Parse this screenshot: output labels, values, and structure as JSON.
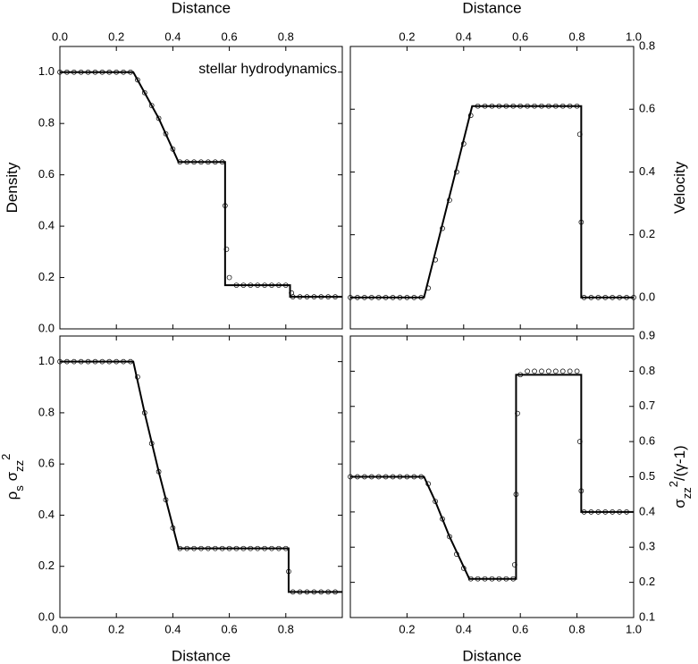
{
  "chart_data": [
    {
      "type": "line-scatter",
      "xlabel": "Distance",
      "xaxis_side": "top",
      "ylabel_parts": [
        {
          "text": "Density"
        }
      ],
      "yaxis_side": "left",
      "annotation": "stellar hydrodynamics",
      "xlim": [
        0,
        1
      ],
      "ylim": [
        0,
        1.1
      ],
      "xticks": [
        {
          "value": 0,
          "label": "0.0"
        },
        0.2,
        0.4,
        0.6,
        0.8
      ],
      "yticks": [
        {
          "value": 0,
          "label": "0.0"
        },
        0.2,
        0.4,
        0.6,
        0.8,
        {
          "value": 1,
          "label": "1.0"
        }
      ],
      "series": [
        {
          "kind": "line",
          "color": "#000000",
          "x": [
            0,
            0.26,
            0.3,
            0.35,
            0.42,
            0.585,
            0.585,
            0.815,
            0.815,
            1
          ],
          "values": [
            1,
            1,
            0.92,
            0.82,
            0.65,
            0.65,
            0.17,
            0.17,
            0.125,
            0.125
          ]
        },
        {
          "kind": "scatter",
          "color": "#000000",
          "x": [
            0,
            0.025,
            0.05,
            0.075,
            0.1,
            0.125,
            0.15,
            0.175,
            0.2,
            0.225,
            0.25,
            0.275,
            0.3,
            0.325,
            0.35,
            0.375,
            0.4,
            0.425,
            0.45,
            0.475,
            0.5,
            0.525,
            0.55,
            0.575,
            0.585,
            0.59,
            0.6,
            0.625,
            0.65,
            0.675,
            0.7,
            0.725,
            0.75,
            0.775,
            0.8,
            0.82,
            0.825,
            0.85,
            0.875,
            0.9,
            0.925,
            0.95,
            0.975
          ],
          "values": [
            1,
            1,
            1,
            1,
            1,
            1,
            1,
            1,
            1,
            1,
            1,
            0.97,
            0.92,
            0.87,
            0.82,
            0.76,
            0.7,
            0.65,
            0.65,
            0.65,
            0.65,
            0.65,
            0.65,
            0.65,
            0.48,
            0.31,
            0.2,
            0.17,
            0.17,
            0.17,
            0.17,
            0.17,
            0.17,
            0.17,
            0.17,
            0.14,
            0.125,
            0.125,
            0.125,
            0.125,
            0.125,
            0.125,
            0.125
          ]
        }
      ]
    },
    {
      "type": "line-scatter",
      "xlabel": "Distance",
      "xaxis_side": "top",
      "ylabel_parts": [
        {
          "text": "Velocity"
        }
      ],
      "yaxis_side": "right",
      "xlim": [
        0,
        1
      ],
      "ylim": [
        -0.1,
        0.8
      ],
      "xticks": [
        0.2,
        0.4,
        0.6,
        0.8,
        {
          "value": 1,
          "label": "1.0"
        }
      ],
      "yticks": [
        {
          "value": 0,
          "label": "0.0"
        },
        0.2,
        0.4,
        0.6,
        0.8
      ],
      "series": [
        {
          "kind": "line",
          "color": "#000000",
          "x": [
            0,
            0.26,
            0.43,
            0.815,
            0.815,
            1
          ],
          "values": [
            0,
            0,
            0.61,
            0.61,
            0,
            0
          ]
        },
        {
          "kind": "scatter",
          "color": "#000000",
          "x": [
            0,
            0.025,
            0.05,
            0.075,
            0.1,
            0.125,
            0.15,
            0.175,
            0.2,
            0.225,
            0.25,
            0.275,
            0.3,
            0.325,
            0.35,
            0.375,
            0.4,
            0.425,
            0.45,
            0.475,
            0.5,
            0.525,
            0.55,
            0.575,
            0.6,
            0.625,
            0.65,
            0.675,
            0.7,
            0.725,
            0.75,
            0.775,
            0.8,
            0.81,
            0.815,
            0.825,
            0.85,
            0.875,
            0.9,
            0.925,
            0.95,
            0.975,
            1
          ],
          "values": [
            0,
            0,
            0,
            0,
            0,
            0,
            0,
            0,
            0,
            0,
            0,
            0.03,
            0.12,
            0.22,
            0.31,
            0.4,
            0.49,
            0.58,
            0.61,
            0.61,
            0.61,
            0.61,
            0.61,
            0.61,
            0.61,
            0.61,
            0.61,
            0.61,
            0.61,
            0.61,
            0.61,
            0.61,
            0.61,
            0.52,
            0.24,
            0,
            0,
            0,
            0,
            0,
            0,
            0,
            0
          ]
        }
      ]
    },
    {
      "type": "line-scatter",
      "xlabel": "Distance",
      "xaxis_side": "bottom",
      "ylabel_parts": [
        {
          "text": "ρ"
        },
        {
          "text": "s",
          "script": "sub"
        },
        {
          "text": " σ"
        },
        {
          "text": "zz",
          "script": "sub"
        },
        {
          "text": "2",
          "script": "super"
        }
      ],
      "yaxis_side": "left",
      "xlim": [
        0,
        1
      ],
      "ylim": [
        0,
        1.1
      ],
      "xticks": [
        {
          "value": 0,
          "label": "0.0"
        },
        0.2,
        0.4,
        0.6,
        0.8
      ],
      "yticks": [
        {
          "value": 0,
          "label": "0.0"
        },
        0.2,
        0.4,
        0.6,
        0.8,
        {
          "value": 1,
          "label": "1.0"
        }
      ],
      "series": [
        {
          "kind": "line",
          "color": "#000000",
          "x": [
            0,
            0.26,
            0.3,
            0.35,
            0.42,
            0.81,
            0.81,
            1
          ],
          "values": [
            1,
            1,
            0.8,
            0.57,
            0.27,
            0.27,
            0.1,
            0.1
          ]
        },
        {
          "kind": "scatter",
          "color": "#000000",
          "x": [
            0,
            0.025,
            0.05,
            0.075,
            0.1,
            0.125,
            0.15,
            0.175,
            0.2,
            0.225,
            0.25,
            0.275,
            0.3,
            0.325,
            0.35,
            0.375,
            0.4,
            0.425,
            0.45,
            0.475,
            0.5,
            0.525,
            0.55,
            0.575,
            0.6,
            0.625,
            0.65,
            0.675,
            0.7,
            0.725,
            0.75,
            0.775,
            0.8,
            0.81,
            0.825,
            0.85,
            0.875,
            0.9,
            0.925,
            0.95,
            0.975
          ],
          "values": [
            1,
            1,
            1,
            1,
            1,
            1,
            1,
            1,
            1,
            1,
            1,
            0.94,
            0.8,
            0.68,
            0.57,
            0.46,
            0.35,
            0.27,
            0.27,
            0.27,
            0.27,
            0.27,
            0.27,
            0.27,
            0.27,
            0.27,
            0.27,
            0.27,
            0.27,
            0.27,
            0.27,
            0.27,
            0.27,
            0.18,
            0.1,
            0.1,
            0.1,
            0.1,
            0.1,
            0.1,
            0.1
          ]
        }
      ]
    },
    {
      "type": "line-scatter",
      "xlabel": "Distance",
      "xaxis_side": "bottom",
      "ylabel_parts": [
        {
          "text": "σ"
        },
        {
          "text": "zz",
          "script": "sub"
        },
        {
          "text": "2",
          "script": "super"
        },
        {
          "text": "/(γ-1)"
        }
      ],
      "yaxis_side": "right",
      "xlim": [
        0,
        1
      ],
      "ylim": [
        0.1,
        0.9
      ],
      "xticks": [
        0.2,
        0.4,
        0.6,
        0.8,
        {
          "value": 1,
          "label": "1.0"
        }
      ],
      "yticks": [
        0.1,
        0.2,
        0.3,
        0.4,
        0.5,
        0.6,
        0.7,
        0.8,
        0.9
      ],
      "series": [
        {
          "kind": "line",
          "color": "#000000",
          "x": [
            0,
            0.26,
            0.3,
            0.35,
            0.42,
            0.585,
            0.585,
            0.815,
            0.815,
            1
          ],
          "values": [
            0.5,
            0.5,
            0.43,
            0.33,
            0.21,
            0.21,
            0.79,
            0.79,
            0.4,
            0.4
          ]
        },
        {
          "kind": "scatter",
          "color": "#000000",
          "x": [
            0,
            0.025,
            0.05,
            0.075,
            0.1,
            0.125,
            0.15,
            0.175,
            0.2,
            0.225,
            0.25,
            0.275,
            0.3,
            0.325,
            0.35,
            0.375,
            0.4,
            0.425,
            0.45,
            0.475,
            0.5,
            0.525,
            0.55,
            0.575,
            0.58,
            0.585,
            0.59,
            0.6,
            0.625,
            0.65,
            0.675,
            0.7,
            0.725,
            0.75,
            0.775,
            0.8,
            0.81,
            0.815,
            0.825,
            0.85,
            0.875,
            0.9,
            0.925,
            0.95,
            0.975
          ],
          "values": [
            0.5,
            0.5,
            0.5,
            0.5,
            0.5,
            0.5,
            0.5,
            0.5,
            0.5,
            0.5,
            0.5,
            0.48,
            0.43,
            0.38,
            0.33,
            0.28,
            0.24,
            0.21,
            0.21,
            0.21,
            0.21,
            0.21,
            0.21,
            0.21,
            0.25,
            0.45,
            0.68,
            0.79,
            0.8,
            0.8,
            0.8,
            0.8,
            0.8,
            0.8,
            0.8,
            0.8,
            0.6,
            0.46,
            0.4,
            0.4,
            0.4,
            0.4,
            0.4,
            0.4,
            0.4
          ]
        }
      ]
    }
  ]
}
